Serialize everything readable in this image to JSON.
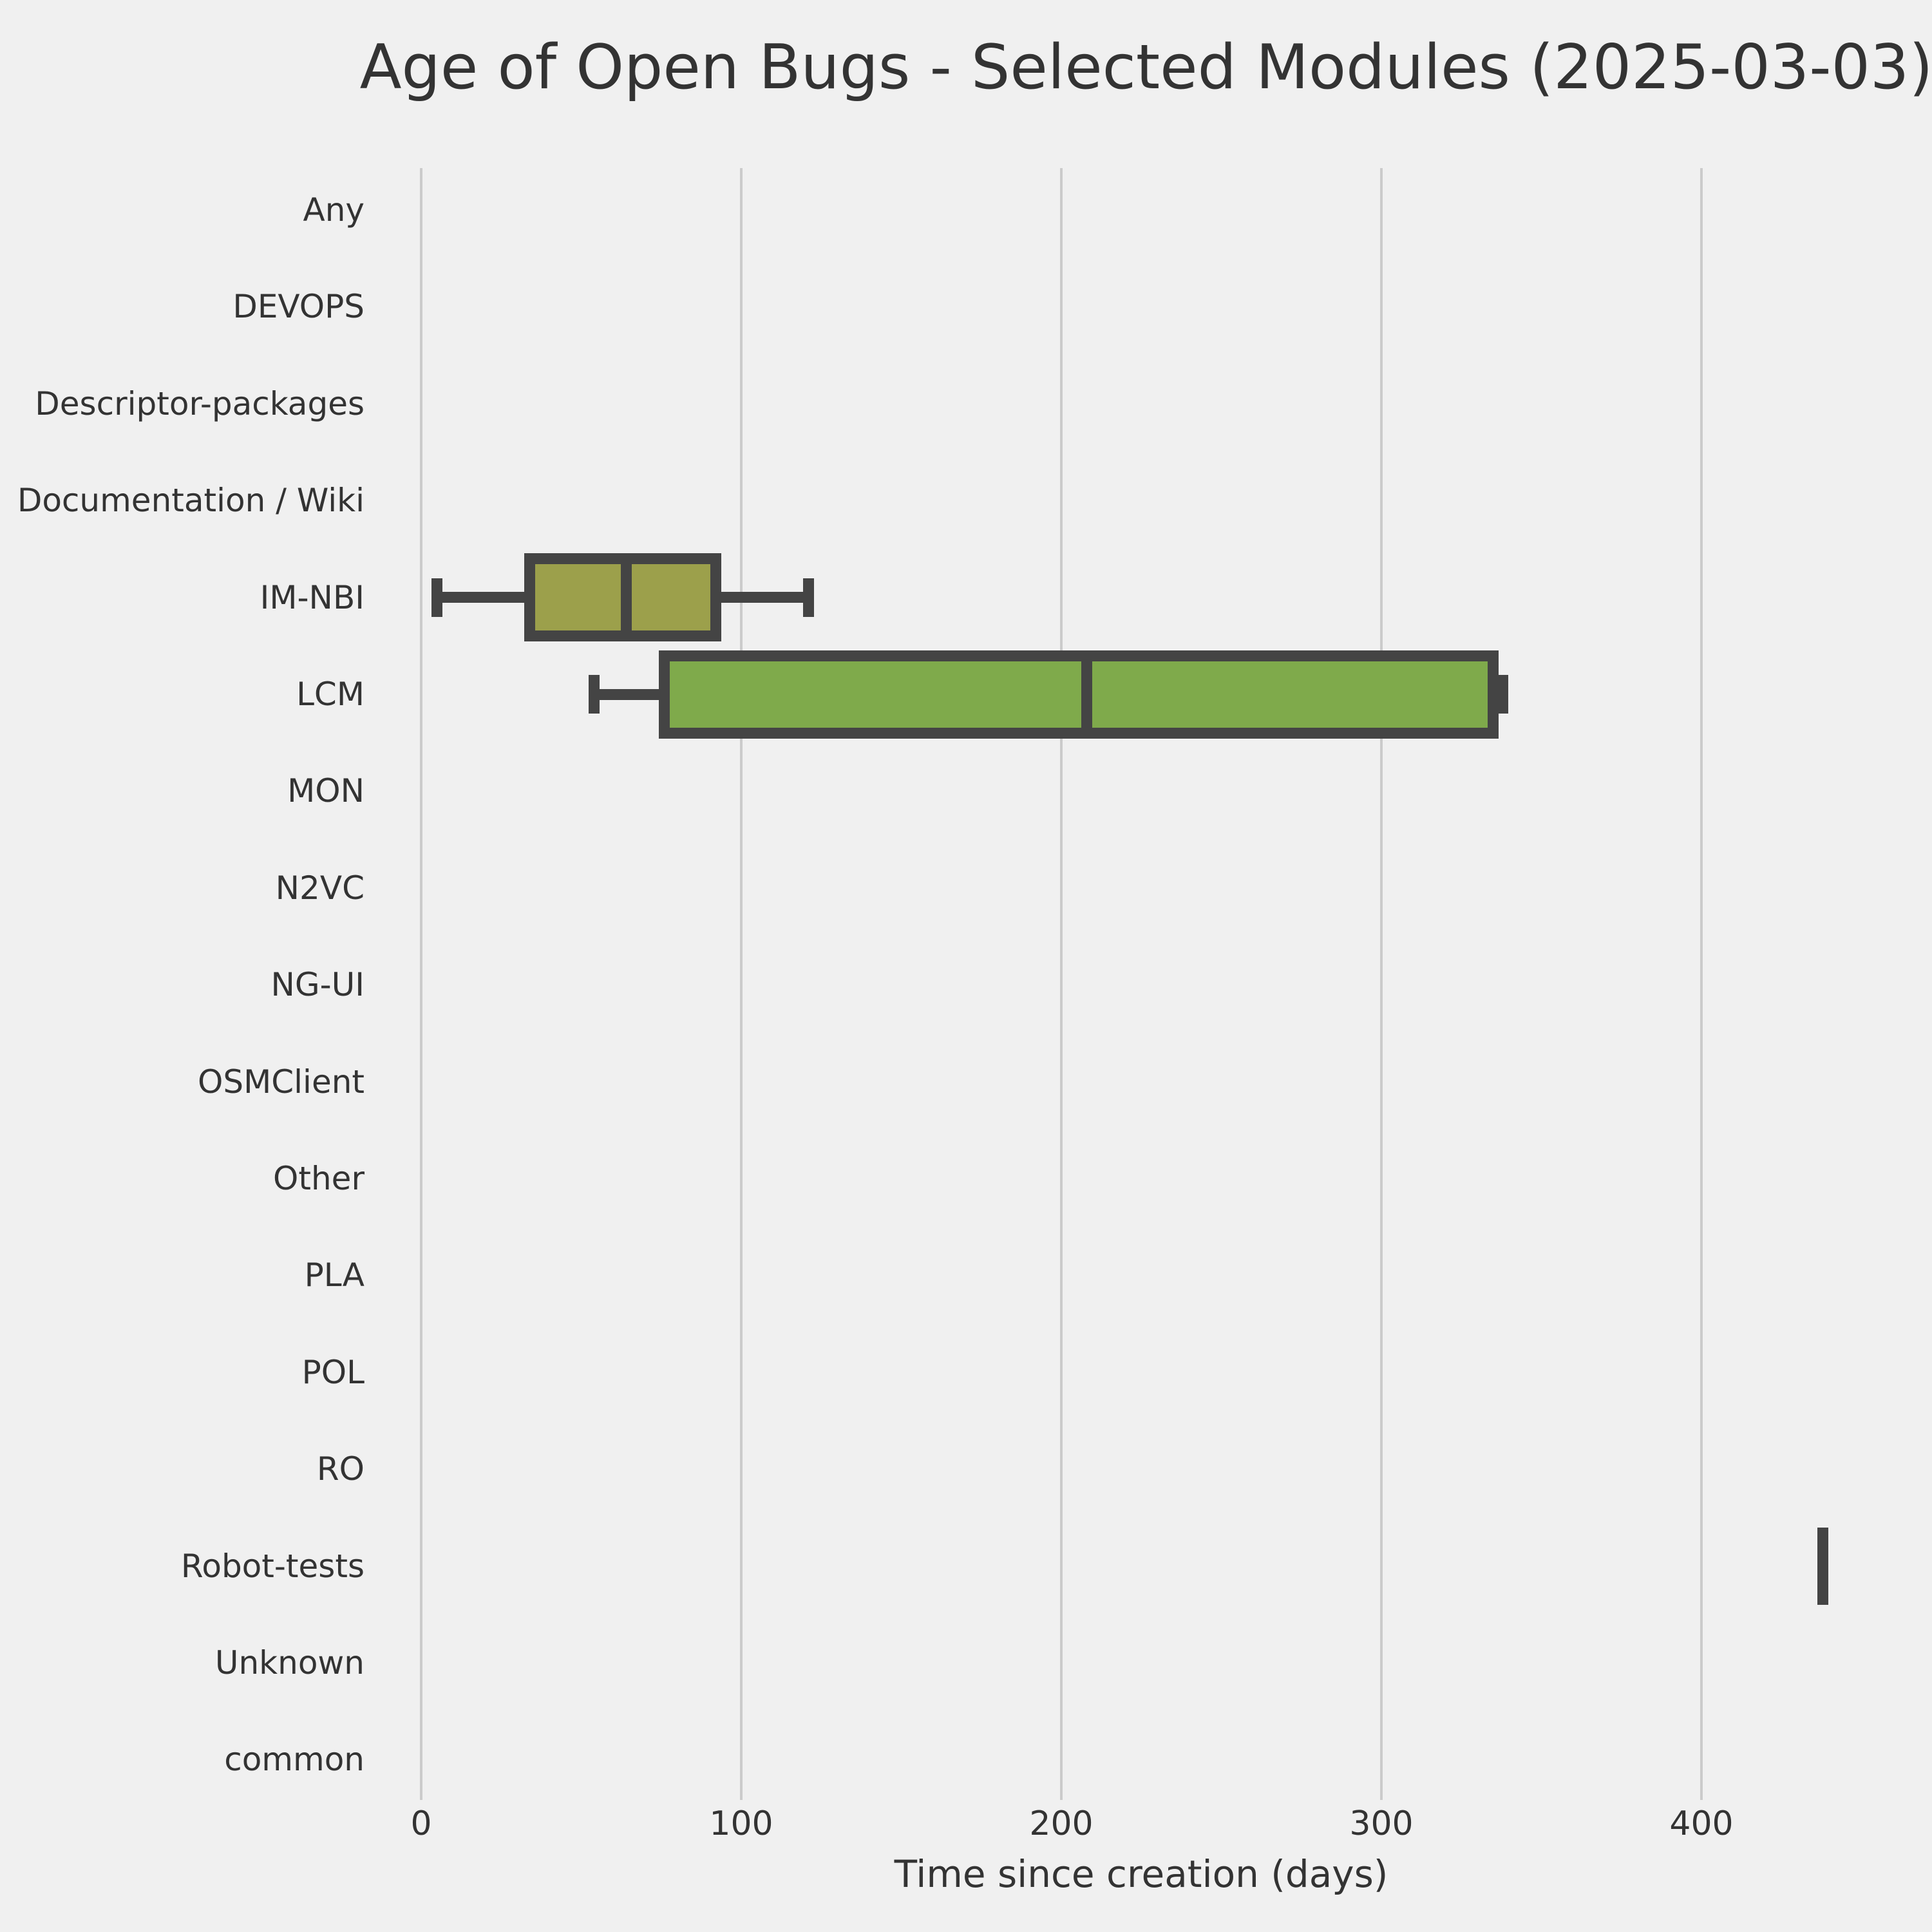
{
  "title": "Age of Open Bugs - Selected Modules (2025-03-03)",
  "x_axis": {
    "label": "Time since creation (days)",
    "ticks": [
      0,
      100,
      200,
      300,
      400
    ]
  },
  "categories": [
    "Any",
    "DEVOPS",
    "Descriptor-packages",
    "Documentation / Wiki",
    "IM-NBI",
    "LCM",
    "MON",
    "N2VC",
    "NG-UI",
    "OSMClient",
    "Other",
    "PLA",
    "POL",
    "RO",
    "Robot-tests",
    "Unknown",
    "common"
  ],
  "chart_data": {
    "type": "box",
    "orientation": "horizontal",
    "title": "Age of Open Bugs - Selected Modules (2025-03-03)",
    "xlabel": "Time since creation (days)",
    "ylabel": "",
    "xlim": [
      -17,
      460
    ],
    "grid": true,
    "legend": false,
    "categories": [
      "Any",
      "DEVOPS",
      "Descriptor-packages",
      "Documentation / Wiki",
      "IM-NBI",
      "LCM",
      "MON",
      "N2VC",
      "NG-UI",
      "OSMClient",
      "Other",
      "PLA",
      "POL",
      "RO",
      "Robot-tests",
      "Unknown",
      "common"
    ],
    "series": [
      {
        "category": "IM-NBI",
        "whisker_low": 5,
        "q1": 34,
        "median": 64,
        "q3": 92,
        "whisker_high": 121,
        "fill_color": "#9ca04b"
      },
      {
        "category": "LCM",
        "whisker_low": 54,
        "q1": 76,
        "median": 208,
        "q3": 335,
        "whisker_high": 338,
        "fill_color": "#7faa4b"
      },
      {
        "category": "Robot-tests",
        "single_value": 438,
        "fill_color": "#444444"
      }
    ],
    "empty_categories": [
      "Any",
      "DEVOPS",
      "Descriptor-packages",
      "Documentation / Wiki",
      "MON",
      "N2VC",
      "NG-UI",
      "OSMClient",
      "Other",
      "PLA",
      "POL",
      "RO",
      "Unknown",
      "common"
    ]
  },
  "colors": {
    "background": "#f0f0f0",
    "gridline": "#cbcbcb",
    "box_edge": "#444444",
    "text": "#333333",
    "im_nbi_fill": "#9ca04b",
    "lcm_fill": "#7faa4b"
  }
}
